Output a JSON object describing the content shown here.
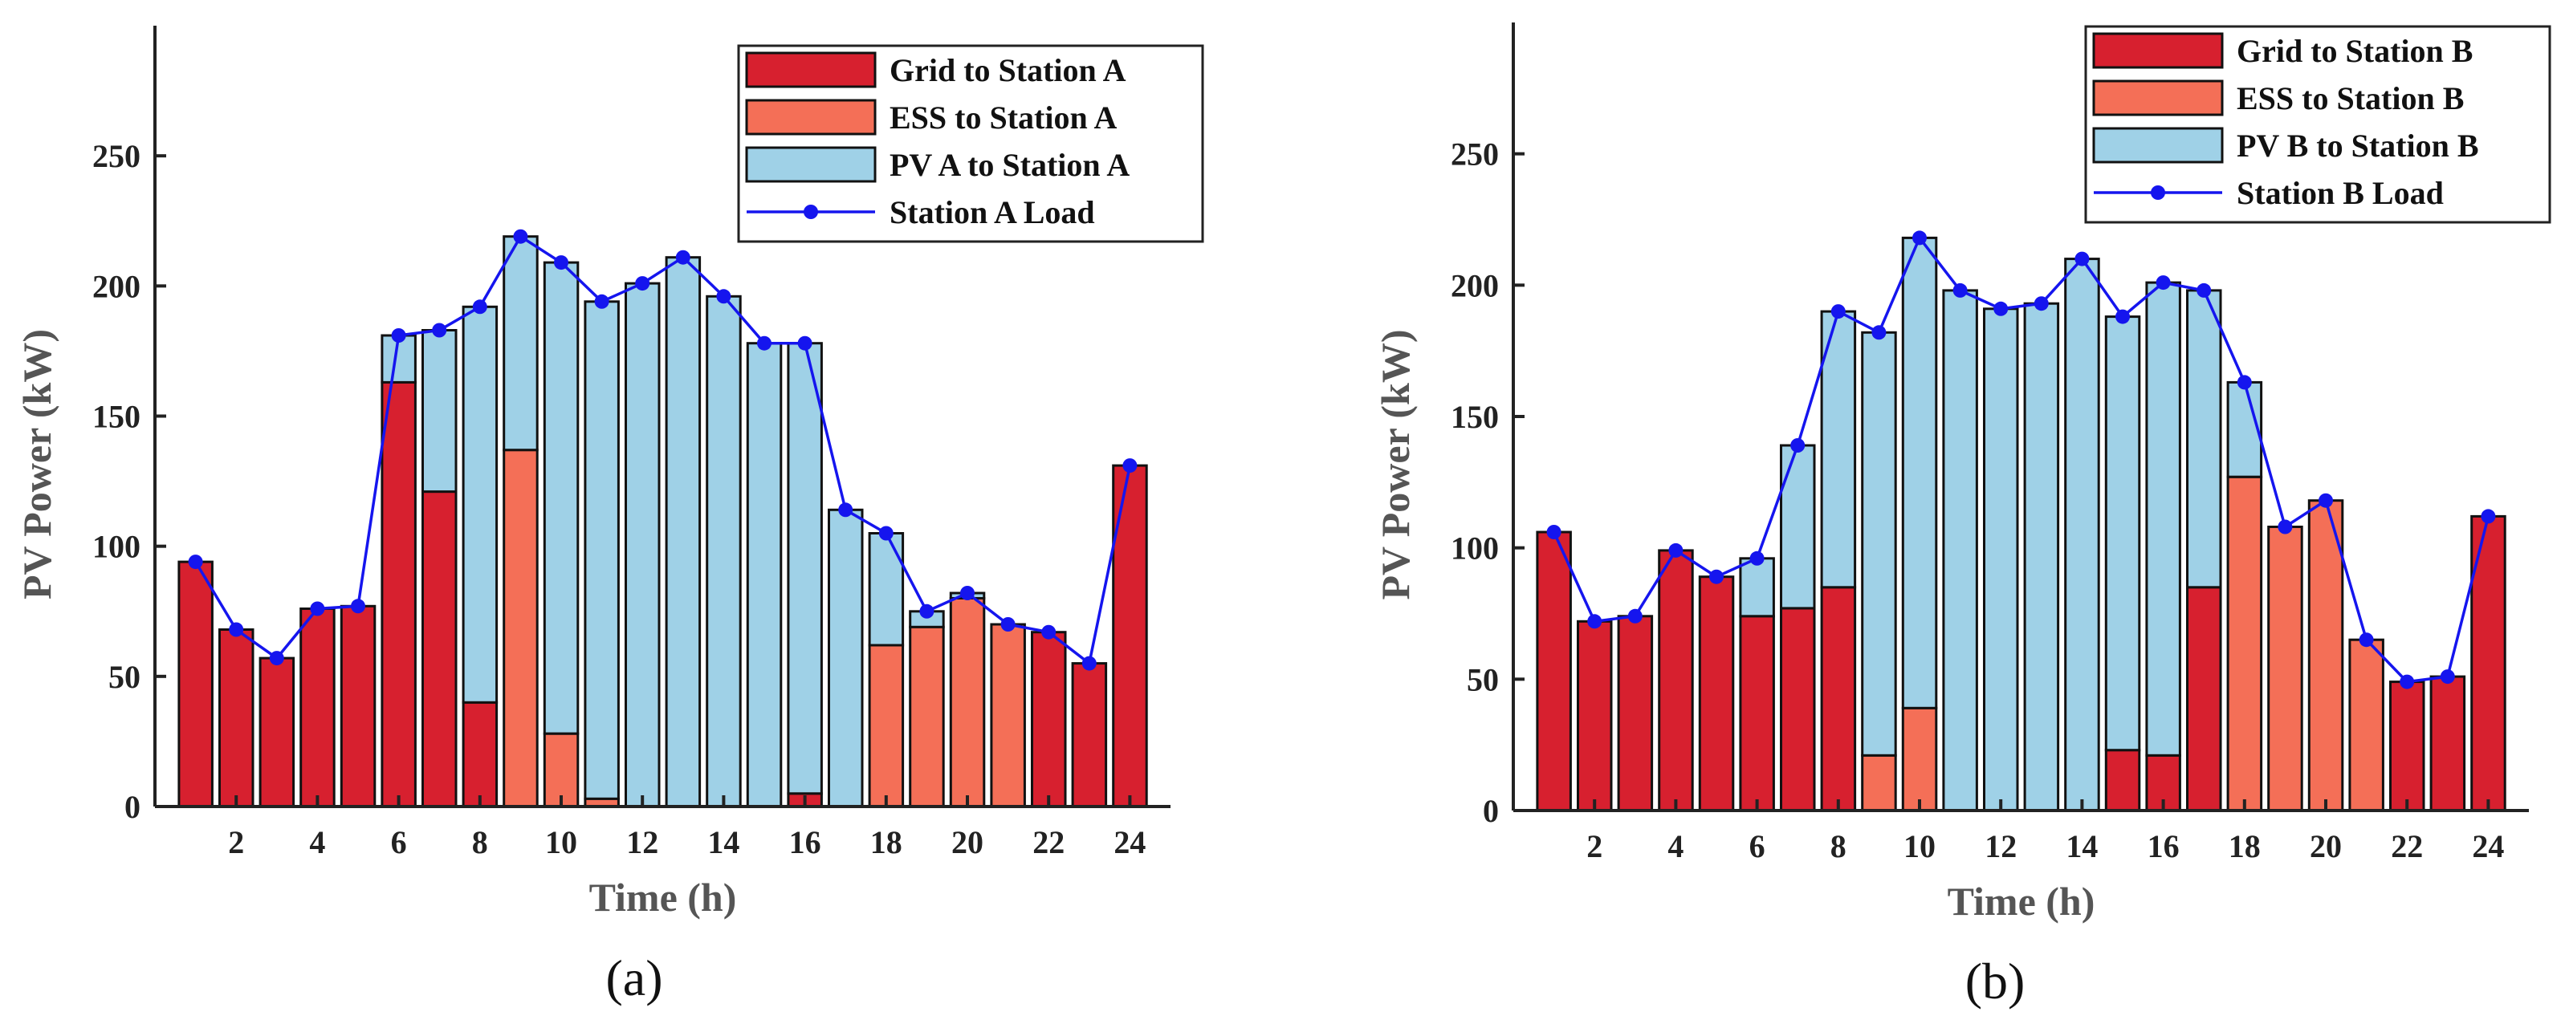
{
  "colors": {
    "grid": "#d7202f",
    "ess": "#f46f57",
    "pv": "#9fd1e7",
    "load": "#1515ee",
    "axis": "#222222",
    "bar_edge": "#111111"
  },
  "chart_data": [
    {
      "type": "bar",
      "stacked": true,
      "panel_label": "(a)",
      "xlabel": "Time (h)",
      "ylabel": "PV Power (kW)",
      "ylim": [
        0,
        300
      ],
      "xlim": [
        0,
        25
      ],
      "yticks": [
        0,
        50,
        100,
        150,
        200,
        250
      ],
      "xticks": [
        2,
        4,
        6,
        8,
        10,
        12,
        14,
        16,
        18,
        20,
        22,
        24
      ],
      "grid": false,
      "legend_position": "top-right",
      "x": [
        1,
        2,
        3,
        4,
        5,
        6,
        7,
        8,
        9,
        10,
        11,
        12,
        13,
        14,
        15,
        16,
        17,
        18,
        19,
        20,
        21,
        22,
        23,
        24
      ],
      "series": [
        {
          "name": "Grid to Station A",
          "color_key": "grid",
          "values": [
            94,
            68,
            57,
            76,
            77,
            163,
            121,
            40,
            0,
            0,
            0,
            0,
            0,
            0,
            0,
            5,
            0,
            0,
            0,
            0,
            0,
            67,
            55,
            131
          ]
        },
        {
          "name": "ESS to Station A",
          "color_key": "ess",
          "values": [
            0,
            0,
            0,
            0,
            0,
            0,
            0,
            0,
            137,
            28,
            3,
            0,
            0,
            0,
            0,
            0,
            0,
            62,
            69,
            80,
            70,
            0,
            0,
            0
          ]
        },
        {
          "name": "PV A to Station A",
          "color_key": "pv",
          "values": [
            0,
            0,
            0,
            0,
            0,
            18,
            62,
            152,
            82,
            181,
            191,
            201,
            211,
            196,
            178,
            173,
            114,
            43,
            6,
            2,
            0,
            0,
            0,
            0
          ]
        }
      ],
      "line": {
        "name": "Station A Load",
        "color_key": "load",
        "values": [
          94,
          68,
          57,
          76,
          77,
          181,
          183,
          192,
          219,
          209,
          194,
          201,
          211,
          196,
          178,
          178,
          114,
          105,
          75,
          82,
          70,
          67,
          55,
          131
        ]
      }
    },
    {
      "type": "bar",
      "stacked": true,
      "panel_label": "(b)",
      "xlabel": "Time (h)",
      "ylabel": "PV Power (kW)",
      "ylim": [
        0,
        300
      ],
      "xlim": [
        0,
        25
      ],
      "yticks": [
        0,
        50,
        100,
        150,
        200,
        250
      ],
      "xticks": [
        2,
        4,
        6,
        8,
        10,
        12,
        14,
        16,
        18,
        20,
        22,
        24
      ],
      "grid": false,
      "legend_position": "top-right",
      "x": [
        1,
        2,
        3,
        4,
        5,
        6,
        7,
        8,
        9,
        10,
        11,
        12,
        13,
        14,
        15,
        16,
        17,
        18,
        19,
        20,
        21,
        22,
        23,
        24
      ],
      "series": [
        {
          "name": "Grid to Station B",
          "color_key": "grid",
          "values": [
            106,
            72,
            74,
            99,
            89,
            74,
            77,
            85,
            0,
            0,
            0,
            0,
            0,
            0,
            23,
            21,
            85,
            0,
            0,
            0,
            0,
            49,
            51,
            112
          ]
        },
        {
          "name": "ESS to Station B",
          "color_key": "ess",
          "values": [
            0,
            0,
            0,
            0,
            0,
            0,
            0,
            0,
            21,
            39,
            0,
            0,
            0,
            0,
            0,
            0,
            0,
            127,
            108,
            118,
            65,
            0,
            0,
            0
          ]
        },
        {
          "name": "PV B to Station B",
          "color_key": "pv",
          "values": [
            0,
            0,
            0,
            0,
            0,
            22,
            62,
            105,
            161,
            179,
            198,
            191,
            193,
            210,
            165,
            180,
            113,
            36,
            0,
            0,
            0,
            0,
            0,
            0
          ]
        }
      ],
      "line": {
        "name": "Station B Load",
        "color_key": "load",
        "values": [
          106,
          72,
          74,
          99,
          89,
          96,
          139,
          190,
          182,
          218,
          198,
          191,
          193,
          210,
          188,
          201,
          198,
          163,
          108,
          118,
          65,
          49,
          51,
          112
        ]
      }
    }
  ]
}
